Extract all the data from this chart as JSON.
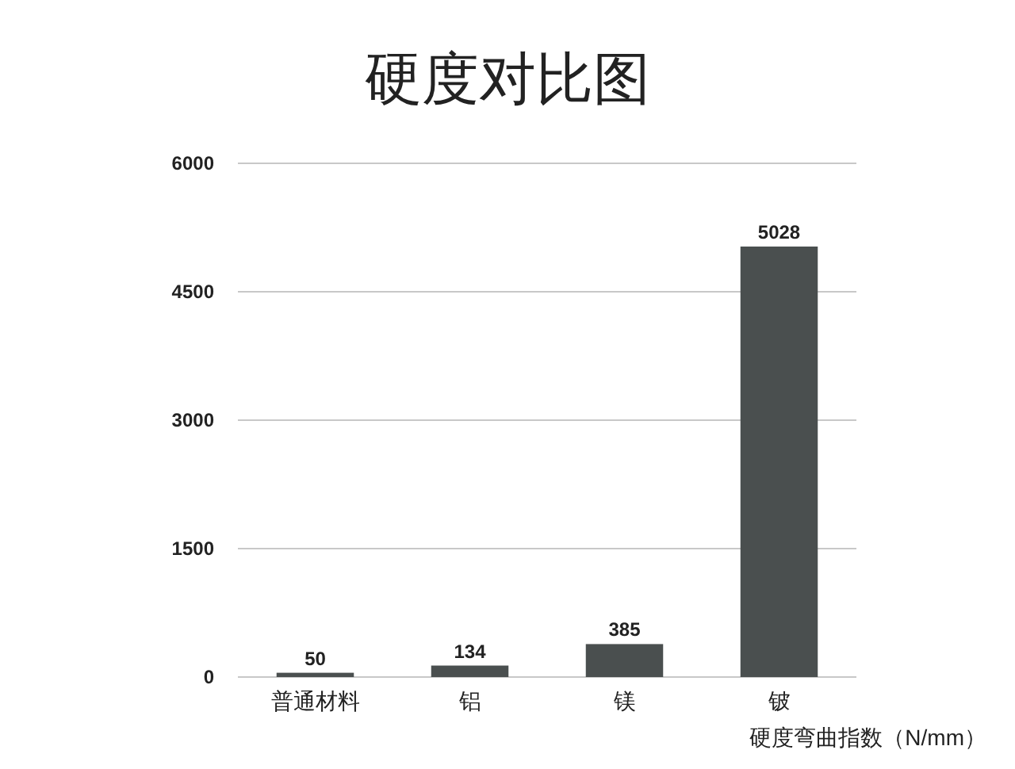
{
  "chart_data": {
    "type": "bar",
    "title": "硬度对比图",
    "xlabel": "硬度弯曲指数（N/mm）",
    "categories": [
      "普通材料",
      "铝",
      "镁",
      "铍"
    ],
    "values": [
      50,
      134,
      385,
      5028
    ],
    "color": "#4a4f4f",
    "ylim": [
      0,
      6000
    ],
    "yticks": [
      0,
      1500,
      3000,
      4500,
      6000
    ],
    "grid": "y",
    "data_labels": true
  }
}
